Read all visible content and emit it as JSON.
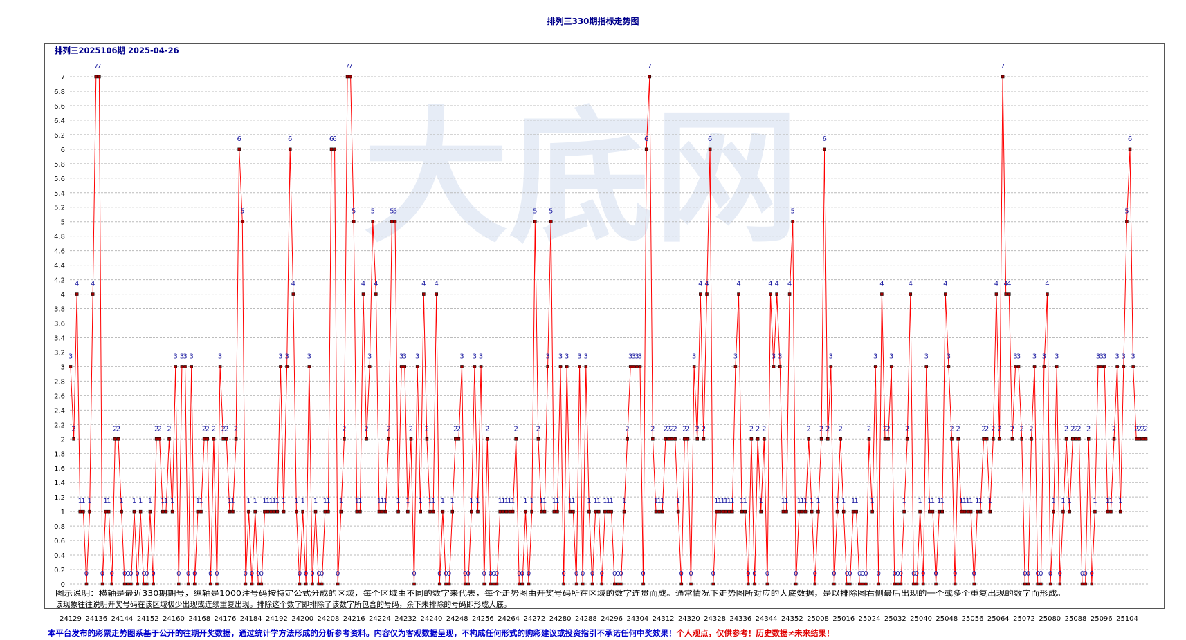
{
  "page": {
    "title": "排列三330期指标走势图",
    "subtitle": "排列三2025106期  2025-04-26",
    "watermark": "大底网",
    "description_line1": "图示说明：横轴是最近330期期号，纵轴是1000注号码按特定公式分成的区域，每个区域由不同的数字来代表，每个走势图由开奖号码所在区域的数字连贯而成。通常情况下走势图所对应的大底数据，是以排除图右侧最后出现的一个或多个重复出现的数字而形成。",
    "description_line2": "该现象往往说明开奖号码在该区域极少出现或连续重复出现。排除这个数字即排除了该数字所包含的号码，余下未排除的号码即形成大底。",
    "footer_main": "本平台发布的彩票走势图系基于公开的往期开奖数据，通过统计学方法形成的分析参考资料。内容仅为客观数据呈现，不构成任何形式的购彩建议或投资指引不承诺任何中奖效果！",
    "footer_warning": "个人观点，仅供参考！历史数据≠未来结果！"
  },
  "colors": {
    "title": "#00008b",
    "series_line": "#ff0000",
    "marker_fill": "#a00000",
    "point_label": "#1a1aa0",
    "grid": "#bbbbbb",
    "footer_text": "#0000cc",
    "footer_warning": "#e00000",
    "watermark": "#e6ecf6"
  },
  "chart_data": {
    "type": "line",
    "title": "排列三330期指标走势图",
    "xlabel": "",
    "ylabel": "",
    "ylim": [
      0,
      7
    ],
    "ytick_step": 0.2,
    "grid": true,
    "x_tick_labels": [
      "24129",
      "24136",
      "24144",
      "24152",
      "24160",
      "24168",
      "24176",
      "24184",
      "24192",
      "24200",
      "24208",
      "24216",
      "24224",
      "24232",
      "24240",
      "24248",
      "24256",
      "24264",
      "24272",
      "24280",
      "24288",
      "24296",
      "24304",
      "24312",
      "24320",
      "24328",
      "24336",
      "24344",
      "24352",
      "25008",
      "25016",
      "25024",
      "25032",
      "25040",
      "25048",
      "25056",
      "25064",
      "25072",
      "25080",
      "25088",
      "25096",
      "25104"
    ],
    "values": [
      3,
      2,
      4,
      1,
      1,
      0,
      1,
      4,
      7,
      7,
      0,
      1,
      1,
      0,
      2,
      2,
      1,
      0,
      0,
      0,
      1,
      0,
      1,
      0,
      0,
      1,
      0,
      2,
      2,
      1,
      1,
      2,
      1,
      3,
      0,
      3,
      3,
      0,
      3,
      0,
      1,
      1,
      2,
      2,
      0,
      2,
      0,
      3,
      2,
      2,
      1,
      1,
      2,
      6,
      5,
      0,
      1,
      0,
      1,
      0,
      0,
      1,
      1,
      1,
      1,
      1,
      3,
      1,
      3,
      6,
      4,
      1,
      0,
      1,
      0,
      3,
      0,
      1,
      0,
      0,
      1,
      1,
      6,
      6,
      0,
      1,
      2,
      7,
      7,
      5,
      1,
      1,
      4,
      2,
      3,
      5,
      4,
      1,
      1,
      1,
      2,
      5,
      5,
      1,
      3,
      3,
      1,
      2,
      0,
      3,
      1,
      4,
      2,
      1,
      1,
      4,
      0,
      1,
      0,
      0,
      1,
      2,
      2,
      3,
      0,
      0,
      1,
      3,
      1,
      3,
      0,
      2,
      0,
      0,
      0,
      1,
      1,
      1,
      1,
      1,
      2,
      0,
      0,
      1,
      0,
      1,
      5,
      2,
      1,
      1,
      3,
      5,
      1,
      1,
      3,
      0,
      3,
      1,
      1,
      0,
      3,
      0,
      3,
      1,
      0,
      1,
      1,
      0,
      1,
      1,
      1,
      0,
      0,
      0,
      1,
      2,
      3,
      3,
      3,
      3,
      0,
      6,
      7,
      2,
      1,
      1,
      1,
      2,
      2,
      2,
      2,
      1,
      0,
      2,
      2,
      0,
      3,
      2,
      4,
      2,
      4,
      6,
      0,
      1,
      1,
      1,
      1,
      1,
      1,
      3,
      4,
      1,
      1,
      0,
      2,
      0,
      2,
      1,
      2,
      0,
      4,
      3,
      4,
      3,
      1,
      1,
      4,
      5,
      0,
      1,
      1,
      1,
      2,
      1,
      0,
      1,
      2,
      6,
      2,
      3,
      0,
      1,
      2,
      1,
      0,
      0,
      1,
      1,
      0,
      0,
      0,
      2,
      1,
      3,
      0,
      4,
      2,
      2,
      3,
      0,
      0,
      0,
      1,
      2,
      4,
      0,
      0,
      1,
      0,
      3,
      1,
      1,
      0,
      1,
      1,
      4,
      3,
      2,
      0,
      2,
      1,
      1,
      1,
      1,
      0,
      1,
      1,
      2,
      2,
      1,
      2,
      4,
      2,
      7,
      4,
      4,
      2,
      3,
      3,
      2,
      0,
      0,
      2,
      3,
      0,
      0,
      3,
      4,
      0,
      1,
      3,
      0,
      1,
      2,
      1,
      2,
      2,
      2,
      0,
      0,
      2,
      0,
      1,
      3,
      3,
      3,
      1,
      1,
      2,
      3,
      1,
      3,
      5,
      6,
      3,
      2,
      2,
      2,
      2
    ]
  }
}
